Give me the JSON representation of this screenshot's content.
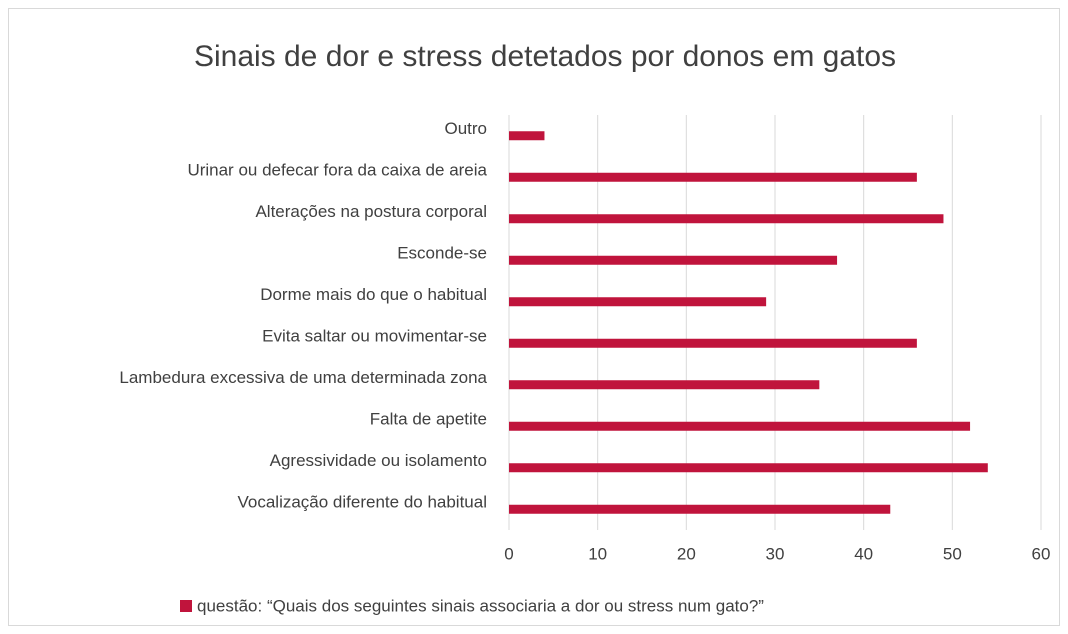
{
  "chart_data": {
    "type": "bar",
    "orientation": "horizontal",
    "title": "Sinais de dor e stress detetados por donos em gatos",
    "categories": [
      "Outro",
      "Urinar ou defecar fora da caixa de areia",
      "Alterações na postura corporal",
      "Esconde-se",
      "Dorme mais do que o habitual",
      "Evita saltar ou movimentar-se",
      "Lambedura excessiva de uma determinada zona",
      "Falta de apetite",
      "Agressividade ou isolamento",
      "Vocalização diferente do habitual"
    ],
    "series": [
      {
        "name": "questão: “Quais dos seguintes sinais associaria a dor ou stress num gato?”",
        "color": "#c0143c",
        "values": [
          4,
          46,
          49,
          37,
          29,
          46,
          35,
          52,
          54,
          43
        ]
      }
    ],
    "xlim": [
      0,
      60
    ],
    "xticks": [
      0,
      10,
      20,
      30,
      40,
      50,
      60
    ],
    "grid": true,
    "legend": "bottom"
  }
}
